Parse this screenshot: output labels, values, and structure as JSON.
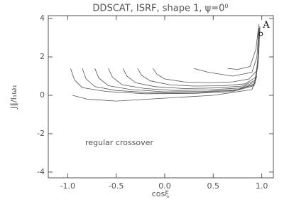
{
  "chart_data": {
    "type": "line",
    "title": "DDSCAT, ISRF, shape 1, ψ=0⁰",
    "y_label": "J∥/I₁ω₁",
    "x_label": "cosξ",
    "annotation": "regular crossover",
    "xlim": [
      -1.2,
      1.12
    ],
    "ylim": [
      -4.3,
      4.15
    ],
    "xticks": [
      {
        "value": -1.0,
        "label": "-1.0"
      },
      {
        "value": -0.5,
        "label": "-0.5"
      },
      {
        "value": 0.0,
        "label": "0.0"
      },
      {
        "value": 0.5,
        "label": "0.5"
      },
      {
        "value": 1.0,
        "label": "1.0"
      }
    ],
    "yticks": [
      -4,
      -2,
      0,
      2,
      4
    ],
    "color": "#555555",
    "series": [
      {
        "x": [
          -0.97,
          -0.93,
          -0.85,
          -0.6,
          -0.2,
          0.3,
          0.7,
          0.92,
          0.96,
          0.97
        ],
        "values": [
          1.4,
          0.8,
          0.4,
          0.2,
          0.08,
          0.1,
          0.2,
          0.5,
          1.5,
          3.3
        ]
      },
      {
        "x": [
          -0.85,
          -0.81,
          -0.72,
          -0.5,
          -0.1,
          0.35,
          0.72,
          0.92,
          0.96,
          0.975
        ],
        "values": [
          1.4,
          0.85,
          0.45,
          0.25,
          0.12,
          0.15,
          0.25,
          0.55,
          1.6,
          3.4
        ]
      },
      {
        "x": [
          -0.72,
          -0.68,
          -0.58,
          -0.35,
          0.0,
          0.4,
          0.75,
          0.93,
          0.965,
          0.975
        ],
        "values": [
          1.4,
          0.9,
          0.5,
          0.3,
          0.18,
          0.2,
          0.3,
          0.6,
          1.8,
          3.5
        ]
      },
      {
        "x": [
          -0.58,
          -0.54,
          -0.44,
          -0.2,
          0.1,
          0.45,
          0.78,
          0.93,
          0.965,
          0.98
        ],
        "values": [
          1.4,
          0.95,
          0.55,
          0.35,
          0.25,
          0.28,
          0.38,
          0.7,
          2.0,
          3.5
        ]
      },
      {
        "x": [
          -0.43,
          -0.39,
          -0.3,
          -0.1,
          0.2,
          0.5,
          0.8,
          0.94,
          0.97,
          0.98
        ],
        "values": [
          1.4,
          1.0,
          0.65,
          0.45,
          0.35,
          0.38,
          0.48,
          0.8,
          2.2,
          3.6
        ]
      },
      {
        "x": [
          -0.28,
          -0.24,
          -0.15,
          0.05,
          0.3,
          0.6,
          0.83,
          0.94,
          0.97,
          0.98
        ],
        "values": [
          1.4,
          1.05,
          0.75,
          0.55,
          0.48,
          0.5,
          0.6,
          0.95,
          2.4,
          3.6
        ]
      },
      {
        "x": [
          -0.12,
          -0.08,
          0.0,
          0.2,
          0.45,
          0.7,
          0.87,
          0.95,
          0.975
        ],
        "values": [
          1.4,
          1.1,
          0.85,
          0.7,
          0.65,
          0.7,
          0.85,
          1.3,
          3.0
        ]
      },
      {
        "x": [
          0.3,
          0.45,
          0.7,
          0.9,
          0.95,
          0.97
        ],
        "values": [
          1.4,
          1.2,
          1.0,
          1.2,
          2.0,
          3.5
        ]
      },
      {
        "x": [
          0.65,
          0.75,
          0.88,
          0.94,
          0.97
        ],
        "values": [
          1.4,
          1.35,
          1.5,
          2.4,
          3.7
        ]
      },
      {
        "x": [
          -0.95,
          -0.8,
          -0.5,
          0.0,
          0.5,
          0.9,
          0.95
        ],
        "values": [
          0.0,
          -0.2,
          -0.3,
          -0.15,
          0.0,
          0.3,
          1.0
        ]
      }
    ],
    "markers": [
      {
        "label": "A",
        "x": 0.99,
        "y": 3.2
      }
    ]
  }
}
